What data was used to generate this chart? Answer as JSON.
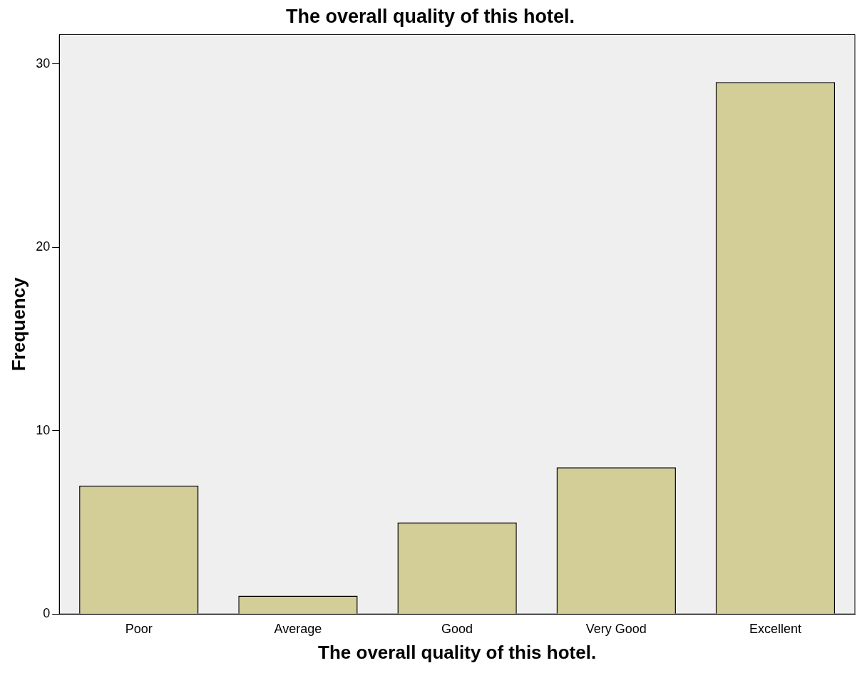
{
  "chart_data": {
    "type": "bar",
    "title": "The overall quality of this hotel.",
    "xlabel": "The overall quality of this hotel.",
    "ylabel": "Frequency",
    "categories": [
      "Poor",
      "Average",
      "Good",
      "Very Good",
      "Excellent"
    ],
    "values": [
      7,
      1,
      5,
      8,
      29
    ],
    "color": "#d3cd97",
    "ylim": [
      0,
      31.6
    ],
    "yticks": [
      0,
      10,
      20,
      30
    ],
    "grid": false,
    "legend": false
  }
}
